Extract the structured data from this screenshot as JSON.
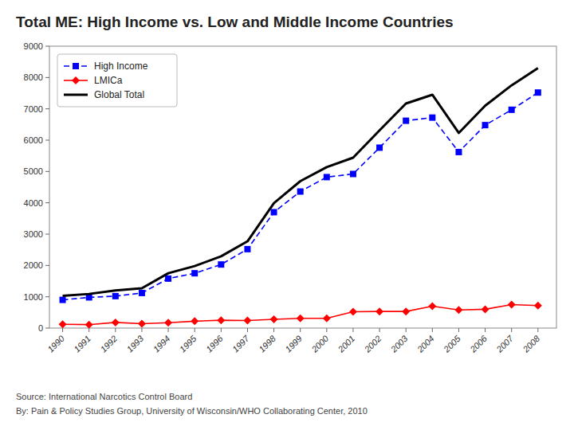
{
  "chart_data": {
    "type": "line",
    "title": "Total ME: High Income vs. Low and Middle Income Countries",
    "x": [
      1990,
      1991,
      1992,
      1993,
      1994,
      1995,
      1996,
      1997,
      1998,
      1999,
      2000,
      2001,
      2002,
      2003,
      2004,
      2005,
      2006,
      2007,
      2008
    ],
    "series": [
      {
        "name": "High Income",
        "color": "#0000FF",
        "marker": "square",
        "line_style": "dashed",
        "values": [
          900,
          980,
          1020,
          1120,
          1580,
          1750,
          2030,
          2520,
          3700,
          4360,
          4820,
          4920,
          5760,
          6620,
          6720,
          5620,
          6480,
          6970,
          7520
        ]
      },
      {
        "name": "LMICa",
        "color": "#FF0000",
        "marker": "diamond",
        "line_style": "solid",
        "values": [
          120,
          110,
          180,
          140,
          170,
          220,
          250,
          240,
          280,
          310,
          310,
          520,
          530,
          530,
          700,
          580,
          600,
          750,
          720
        ]
      },
      {
        "name": "Global Total",
        "color": "#000000",
        "marker": "none",
        "line_style": "solid",
        "values": [
          1030,
          1090,
          1200,
          1270,
          1750,
          1980,
          2290,
          2770,
          3990,
          4690,
          5140,
          5440,
          6310,
          7170,
          7450,
          6230,
          7100,
          7750,
          8300
        ]
      }
    ],
    "xlim": [
      1989.5,
      2008.7
    ],
    "xticks": [
      1990,
      1991,
      1992,
      1993,
      1994,
      1995,
      1996,
      1997,
      1998,
      1999,
      2000,
      2001,
      2002,
      2003,
      2004,
      2005,
      2006,
      2007,
      2008
    ],
    "ylim": [
      0,
      9000
    ],
    "yticks": [
      0,
      1000,
      2000,
      3000,
      4000,
      5000,
      6000,
      7000,
      8000,
      9000
    ],
    "grid": false,
    "legend": "upper left",
    "annotations": [
      "Source: International Narcotics Control Board",
      "By: Pain & Policy Studies Group, University of Wisconsin/WHO Collaborating Center, 2010"
    ]
  }
}
